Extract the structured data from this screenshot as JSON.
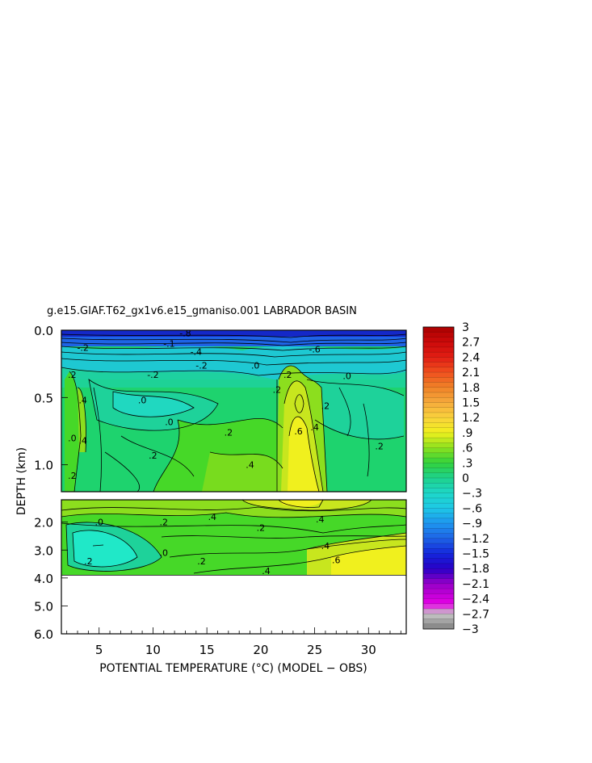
{
  "chart_data": {
    "type": "heatmap",
    "title": "g.e15.GIAF.T62_gx1v6.e15_gmaniso.001 LABRADOR BASIN",
    "xlabel": "POTENTIAL TEMPERATURE (°C) (MODEL − OBS)",
    "ylabel": "DEPTH (km)",
    "xlim": [
      1.5,
      33.5
    ],
    "x_ticks": [
      "5",
      "10",
      "15",
      "20",
      "25",
      "30"
    ],
    "x_tick_values": [
      5,
      10,
      15,
      20,
      25,
      30
    ],
    "upper_panel": {
      "ylim": [
        0.0,
        1.2
      ],
      "y_ticks": [
        "0.0",
        "0.5",
        "1.0"
      ],
      "y_tick_values": [
        0.0,
        0.5,
        1.0
      ],
      "contour_labels": [
        {
          "text": "-.8",
          "x": 13.0,
          "y": 0.02
        },
        {
          "text": "-.2",
          "x": 3.5,
          "y": 0.13
        },
        {
          "text": "-.1",
          "x": 11.5,
          "y": 0.1
        },
        {
          "text": "-.4",
          "x": 14.0,
          "y": 0.16
        },
        {
          "text": "-.2",
          "x": 14.5,
          "y": 0.26
        },
        {
          "text": "-.6",
          "x": 25.0,
          "y": 0.14
        },
        {
          "text": "-.2",
          "x": 10.0,
          "y": 0.33
        },
        {
          "text": ".0",
          "x": 19.5,
          "y": 0.26
        },
        {
          "text": ".0",
          "x": 28.0,
          "y": 0.34
        },
        {
          "text": ".2",
          "x": 2.5,
          "y": 0.33
        },
        {
          "text": ".4",
          "x": 3.5,
          "y": 0.52
        },
        {
          "text": ".0",
          "x": 9.0,
          "y": 0.52
        },
        {
          "text": ".0",
          "x": 11.5,
          "y": 0.68
        },
        {
          "text": ".2",
          "x": 21.5,
          "y": 0.44
        },
        {
          "text": ".2",
          "x": 22.5,
          "y": 0.33
        },
        {
          "text": ".6",
          "x": 23.5,
          "y": 0.75
        },
        {
          "text": ".4",
          "x": 25.0,
          "y": 0.72
        },
        {
          "text": ".2",
          "x": 26.0,
          "y": 0.56
        },
        {
          "text": ".2",
          "x": 31.0,
          "y": 0.86
        },
        {
          "text": ".2",
          "x": 17.0,
          "y": 0.76
        },
        {
          "text": ".2",
          "x": 10.0,
          "y": 0.93
        },
        {
          "text": ".4",
          "x": 19.0,
          "y": 1.0
        },
        {
          "text": ".0",
          "x": 2.5,
          "y": 0.8
        },
        {
          "text": ".4",
          "x": 3.5,
          "y": 0.82
        },
        {
          "text": ".2",
          "x": 2.5,
          "y": 1.08
        }
      ]
    },
    "lower_panel": {
      "ylim": [
        1.2,
        6.0
      ],
      "y_ticks": [
        "2.0",
        "3.0",
        "4.0",
        "5.0",
        "6.0"
      ],
      "y_tick_values": [
        2.0,
        3.0,
        4.0,
        5.0,
        6.0
      ],
      "data_bottom_depth": 3.9,
      "contour_labels": [
        {
          "text": ".4",
          "x": 15.5,
          "y": 1.8
        },
        {
          "text": ".4",
          "x": 25.5,
          "y": 1.9
        },
        {
          "text": ".2",
          "x": 11.0,
          "y": 2.0
        },
        {
          "text": ".2",
          "x": 20.0,
          "y": 2.2
        },
        {
          "text": ".0",
          "x": 5.0,
          "y": 2.0
        },
        {
          "text": ".4",
          "x": 26.0,
          "y": 2.85
        },
        {
          "text": ".6",
          "x": 27.0,
          "y": 3.35
        },
        {
          "text": ".0",
          "x": 11.0,
          "y": 3.1
        },
        {
          "text": ".2",
          "x": 14.5,
          "y": 3.4
        },
        {
          "text": ".2",
          "x": 4.0,
          "y": 3.4
        },
        {
          "text": ".4",
          "x": 20.5,
          "y": 3.75
        }
      ]
    },
    "colorbar": {
      "labels": [
        "3",
        "2.7",
        "2.4",
        "2.1",
        "1.8",
        "1.5",
        "1.2",
        ".9",
        ".6",
        ".3",
        "0",
        "−.3",
        "−.6",
        "−.9",
        "−1.2",
        "−1.5",
        "−1.8",
        "−2.1",
        "−2.4",
        "−2.7",
        "−3"
      ],
      "values": [
        3,
        2.7,
        2.4,
        2.1,
        1.8,
        1.5,
        1.2,
        0.9,
        0.6,
        0.3,
        0,
        -0.3,
        -0.6,
        -0.9,
        -1.2,
        -1.5,
        -1.8,
        -2.1,
        -2.4,
        -2.7,
        -3
      ],
      "range": [
        -3,
        3
      ]
    }
  }
}
